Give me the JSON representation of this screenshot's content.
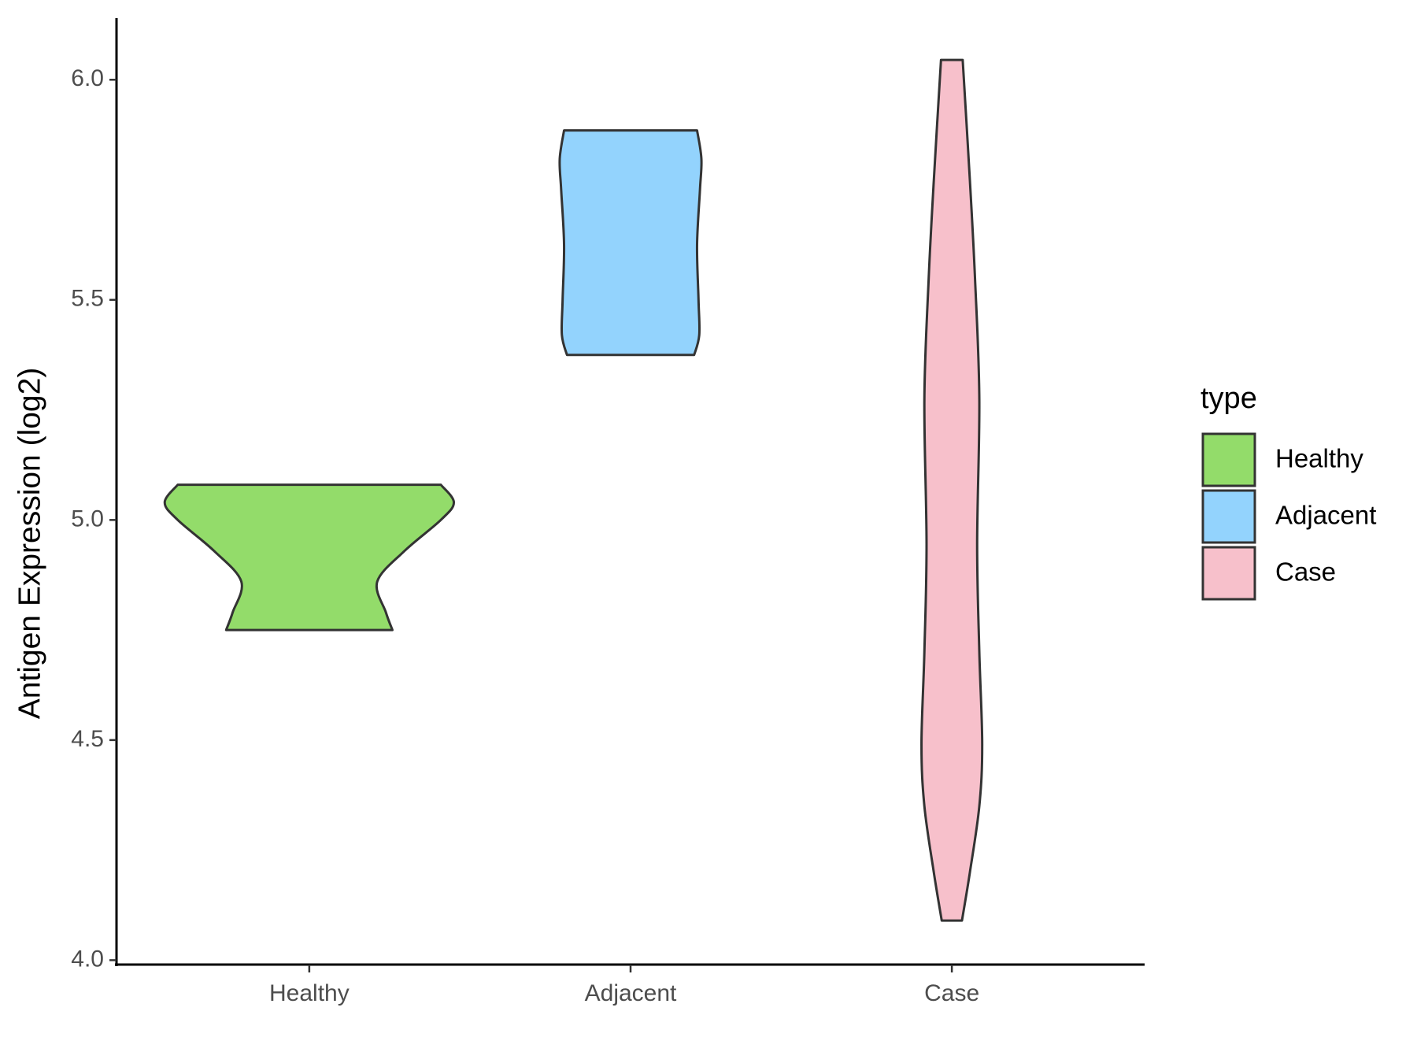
{
  "chart_data": {
    "type": "violin",
    "y_label": "Antigen Expression (log2)",
    "categories": [
      "Healthy",
      "Adjacent",
      "Case"
    ],
    "legend_title": "type",
    "legend_position": "right",
    "ylim": [
      3.99,
      6.14
    ],
    "yticks": [
      {
        "value": 4,
        "label": "4.0"
      },
      4.5,
      {
        "value": 5,
        "label": "5.0"
      },
      5.5,
      {
        "value": 6,
        "label": "6.0"
      }
    ],
    "grid": false,
    "series": [
      {
        "name": "Healthy",
        "color": "#93dc6a",
        "y": [
          4.75,
          4.79,
          4.86,
          4.93,
          5.0,
          5.04,
          5.08
        ],
        "density": [
          0.575,
          0.53,
          0.47,
          0.66,
          0.91,
          1.0,
          0.91
        ]
      },
      {
        "name": "Adjacent",
        "color": "#93d3fd",
        "y": [
          5.375,
          5.42,
          5.5,
          5.625,
          5.75,
          5.82,
          5.885
        ],
        "density": [
          0.44,
          0.475,
          0.47,
          0.46,
          0.48,
          0.49,
          0.46
        ]
      },
      {
        "name": "Case",
        "color": "#f7c0cb",
        "y": [
          4.09,
          4.2,
          4.35,
          4.49,
          4.7,
          4.945,
          5.275,
          5.55,
          5.77,
          6.045
        ],
        "density": [
          0.07,
          0.125,
          0.19,
          0.21,
          0.19,
          0.175,
          0.19,
          0.16,
          0.125,
          0.075
        ]
      }
    ]
  }
}
